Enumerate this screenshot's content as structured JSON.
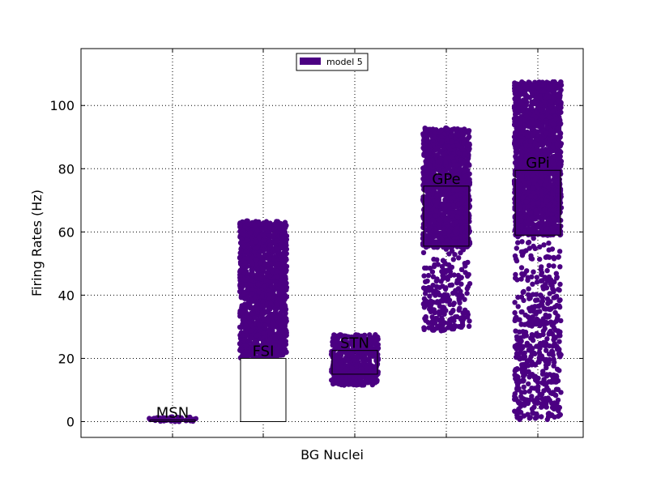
{
  "chart_data": {
    "type": "scatter",
    "title": "",
    "xlabel": "BG Nuclei",
    "ylabel": "Firing Rates (Hz)",
    "ylim": [
      -5,
      118
    ],
    "yticks": [
      0,
      20,
      40,
      60,
      80,
      100
    ],
    "grid": true,
    "legend": {
      "placement": "top-center",
      "entries": [
        "model 5"
      ]
    },
    "series": [
      {
        "name": "model 5",
        "color": "#4b0082"
      }
    ],
    "nuclei": [
      {
        "label": "MSN",
        "dense_range": [
          0,
          1.5
        ],
        "sparse_range": null,
        "box_range": [
          0,
          0.5
        ]
      },
      {
        "label": "FSI",
        "dense_range": [
          20,
          63.5
        ],
        "sparse_range": null,
        "box_range": [
          0,
          20
        ]
      },
      {
        "label": "STN",
        "dense_range": [
          11.5,
          27.5
        ],
        "sparse_range": null,
        "box_range": [
          15,
          22.5
        ]
      },
      {
        "label": "GPe",
        "dense_range": [
          55,
          93
        ],
        "sparse_range": [
          28.5,
          55
        ],
        "box_range": [
          55.5,
          74.5
        ]
      },
      {
        "label": "GPi",
        "dense_range": [
          59,
          107.5
        ],
        "sparse_range": [
          0.5,
          59
        ],
        "box_range": [
          59,
          79.5
        ]
      }
    ]
  }
}
